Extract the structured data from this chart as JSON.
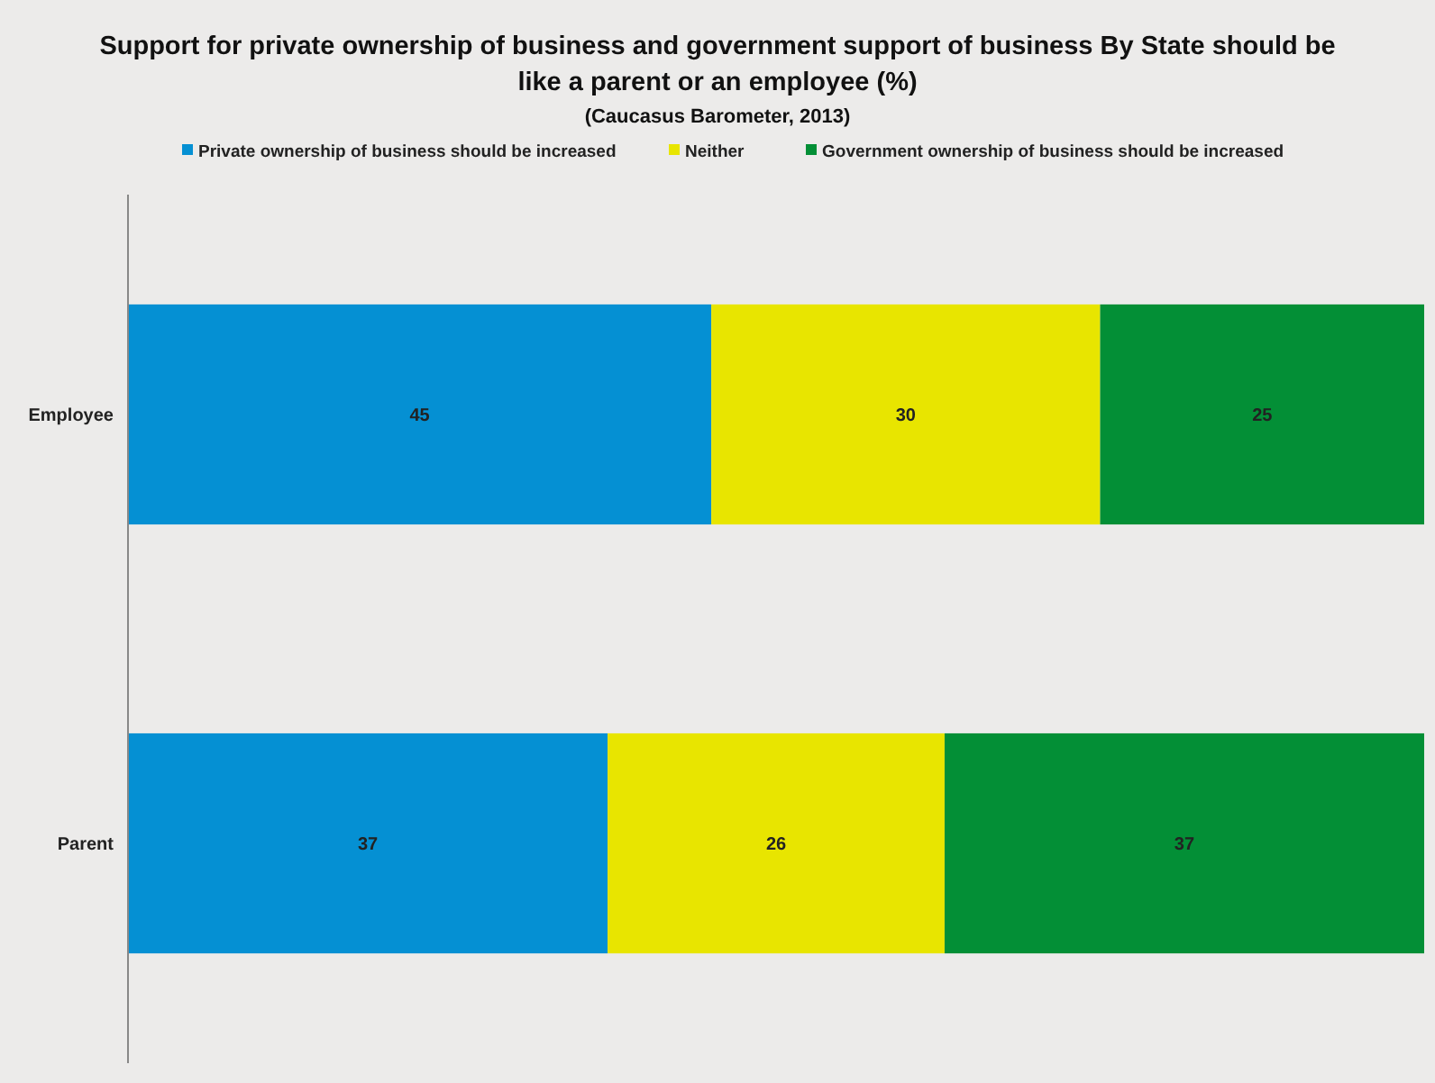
{
  "chart_data": {
    "type": "bar",
    "orientation": "horizontal",
    "stacked": true,
    "title": "Support for private ownership of business and government support of business By State should be like a parent or an employee (%)",
    "subtitle": "(Caucasus Barometer, 2013)",
    "categories": [
      "Employee",
      "Parent"
    ],
    "xlim": [
      0,
      100
    ],
    "data_labels": true,
    "legend": "top",
    "grid": false,
    "series": [
      {
        "name": "Private ownership of business should be increased",
        "color": "#0590d3",
        "values": [
          45,
          37
        ]
      },
      {
        "name": "Neither",
        "color": "#e8e500",
        "values": [
          30,
          26
        ]
      },
      {
        "name": "Government ownership of business should be increased",
        "color": "#038f36",
        "values": [
          25,
          37
        ]
      }
    ]
  }
}
